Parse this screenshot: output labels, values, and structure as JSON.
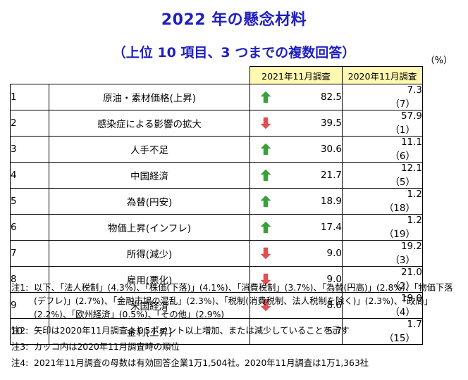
{
  "title": "2022 年の懸念材料",
  "subtitle": "（上位 10 項目、3 つまでの複数回答）",
  "unit": "（%）",
  "header": {
    "col2021": "2021年11月調査",
    "col2020": "2020年11月調査"
  },
  "rows": [
    {
      "rank": "1",
      "item": "原油・素材価格(上昇)",
      "trend": "up",
      "v2021": "82.5",
      "v2020": "7.3",
      "rank2020": "（7）"
    },
    {
      "rank": "2",
      "item": "感染症による影響の拡大",
      "trend": "down",
      "v2021": "39.5",
      "v2020": "57.9",
      "rank2020": "（1）"
    },
    {
      "rank": "3",
      "item": "人手不足",
      "trend": "up",
      "v2021": "30.6",
      "v2020": "11.1",
      "rank2020": "（6）"
    },
    {
      "rank": "4",
      "item": "中国経済",
      "trend": "up",
      "v2021": "21.7",
      "v2020": "12.1",
      "rank2020": "（5）"
    },
    {
      "rank": "5",
      "item": "為替(円安)",
      "trend": "up",
      "v2021": "18.9",
      "v2020": "1.2",
      "rank2020": "（18）"
    },
    {
      "rank": "6",
      "item": "物価上昇(インフレ)",
      "trend": "up",
      "v2021": "17.4",
      "v2020": "1.2",
      "rank2020": "（19）"
    },
    {
      "rank": "7",
      "item": "所得(減少)",
      "trend": "down",
      "v2021": "9.0",
      "v2020": "19.2",
      "rank2020": "（3）"
    },
    {
      "rank": "8",
      "item": "雇用(悪化)",
      "trend": "down",
      "v2021": "9.0",
      "v2020": "21.0",
      "rank2020": "（2）"
    },
    {
      "rank": "9",
      "item": "米国経済",
      "trend": "down",
      "v2021": "8.6",
      "v2020": "19.0",
      "rank2020": "（4）"
    },
    {
      "rank": "10",
      "item": "金利(上昇)",
      "trend": "",
      "v2021": "5.7",
      "v2020": "1.7",
      "rank2020": "（15）"
    }
  ],
  "notes": [
    {
      "label": "注1:",
      "text": "以下、「法人税制」(4.3%)、「株価(下落)」(4.1%)、「消費税制」(3.7%)、「為替(円高)」(2.8%)、「物価下落(デフレ)」(2.7%)、「金融市場の混乱」(2.3%)、「税制(消費税制、法人税制を除く)」(2.3%)、「政局」(2.2%)、「欧州経済」(0.5%)、「その他」(2.9%)"
    },
    {
      "label": "注2:",
      "text": "矢印は2020年11月調査より5ポイント以上増加、または減少していることを示す"
    },
    {
      "label": "注3:",
      "text": "カッコ内は2020年11月調査時の順位"
    },
    {
      "label": "注4:",
      "text": "2021年11月調査の母数は有効回答企業1万1,504社。2020年11月調査は1万1,363社"
    }
  ],
  "colors": {
    "title": "#1f1fbf",
    "header_bg": "#fff8b0",
    "up": "#3aa13a",
    "down": "#e05050"
  },
  "chart_data": {
    "type": "table",
    "title": "2022 年の懸念材料",
    "subtitle": "（上位 10 項目、3 つまでの複数回答）",
    "unit": "%",
    "columns": [
      "2021年11月調査",
      "2020年11月調査"
    ],
    "categories": [
      "原油・素材価格(上昇)",
      "感染症による影響の拡大",
      "人手不足",
      "中国経済",
      "為替(円安)",
      "物価上昇(インフレ)",
      "所得(減少)",
      "雇用(悪化)",
      "米国経済",
      "金利(上昇)"
    ],
    "series": [
      {
        "name": "2021年11月調査",
        "values": [
          82.5,
          39.5,
          30.6,
          21.7,
          18.9,
          17.4,
          9.0,
          9.0,
          8.6,
          5.7
        ]
      },
      {
        "name": "2020年11月調査",
        "values": [
          7.3,
          57.9,
          11.1,
          12.1,
          1.2,
          1.2,
          19.2,
          21.0,
          19.0,
          1.7
        ]
      }
    ],
    "rank_2020": [
      7,
      1,
      6,
      5,
      18,
      19,
      3,
      2,
      4,
      15
    ],
    "trend": [
      "up",
      "down",
      "up",
      "up",
      "up",
      "up",
      "down",
      "down",
      "down",
      ""
    ]
  }
}
